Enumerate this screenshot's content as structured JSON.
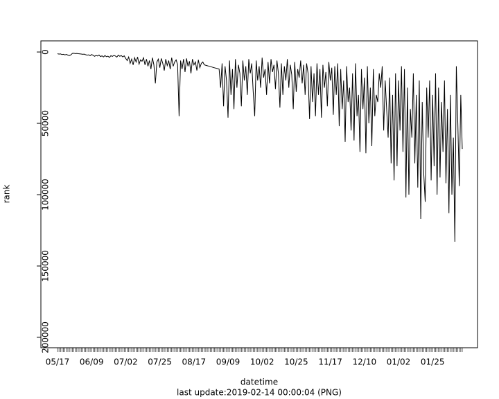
{
  "chart_data": {
    "type": "line",
    "x_label": "datetime",
    "y_label": "rank",
    "caption": "last update:2019-02-14 00:00:04 (PNG)",
    "categories": [
      "05/17",
      null,
      null,
      null,
      null,
      null,
      null,
      null,
      null,
      null,
      null,
      null,
      null,
      null,
      null,
      null,
      null,
      null,
      null,
      null,
      null,
      null,
      null,
      "06/09",
      null,
      null,
      null,
      null,
      null,
      null,
      null,
      null,
      null,
      null,
      null,
      null,
      null,
      null,
      null,
      null,
      null,
      null,
      null,
      null,
      null,
      null,
      "07/02",
      null,
      null,
      null,
      null,
      null,
      null,
      null,
      null,
      null,
      null,
      null,
      null,
      null,
      null,
      null,
      null,
      null,
      null,
      null,
      null,
      null,
      null,
      "07/25",
      null,
      null,
      null,
      null,
      null,
      null,
      null,
      null,
      null,
      null,
      null,
      null,
      null,
      null,
      null,
      null,
      null,
      null,
      null,
      null,
      null,
      null,
      "08/17",
      null,
      null,
      null,
      null,
      null,
      null,
      null,
      null,
      null,
      null,
      null,
      null,
      null,
      null,
      null,
      null,
      null,
      null,
      null,
      null,
      null,
      null,
      "09/09",
      null,
      null,
      null,
      null,
      null,
      null,
      null,
      null,
      null,
      null,
      null,
      null,
      null,
      null,
      null,
      null,
      null,
      null,
      null,
      null,
      null,
      null,
      "10/02",
      null,
      null,
      null,
      null,
      null,
      null,
      null,
      null,
      null,
      null,
      null,
      null,
      null,
      null,
      null,
      null,
      null,
      null,
      null,
      null,
      null,
      null,
      "10/25",
      null,
      null,
      null,
      null,
      null,
      null,
      null,
      null,
      null,
      null,
      null,
      null,
      null,
      null,
      null,
      null,
      null,
      null,
      null,
      null,
      null,
      null,
      "11/17",
      null,
      null,
      null,
      null,
      null,
      null,
      null,
      null,
      null,
      null,
      null,
      null,
      null,
      null,
      null,
      null,
      null,
      null,
      null,
      null,
      null,
      null,
      "12/10",
      null,
      null,
      null,
      null,
      null,
      null,
      null,
      null,
      null,
      null,
      null,
      null,
      null,
      null,
      null,
      null,
      null,
      null,
      null,
      null,
      null,
      null,
      "01/02",
      null,
      null,
      null,
      null,
      null,
      null,
      null,
      null,
      null,
      null,
      null,
      null,
      null,
      null,
      null,
      null,
      null,
      null,
      null,
      null,
      null,
      null,
      "01/25",
      null,
      null,
      null,
      null,
      null,
      null,
      null,
      null,
      null,
      null,
      null,
      null,
      null,
      null,
      null,
      null,
      null,
      null,
      null,
      null
    ],
    "values": [
      1200,
      1500,
      1300,
      1800,
      1600,
      2000,
      1700,
      2200,
      2500,
      2000,
      1000,
      900,
      1100,
      1000,
      1200,
      1300,
      1400,
      1600,
      1500,
      1900,
      2200,
      2000,
      2600,
      1800,
      2300,
      3000,
      2400,
      2800,
      2100,
      3200,
      2700,
      3500,
      2500,
      3300,
      2900,
      3800,
      2600,
      3100,
      2400,
      2800,
      3600,
      2200,
      3000,
      2500,
      3400,
      2700,
      4500,
      6000,
      3500,
      8000,
      5000,
      9000,
      4000,
      7000,
      3500,
      8500,
      5500,
      6500,
      4000,
      9000,
      5000,
      10000,
      6000,
      12000,
      4000,
      9000,
      22000,
      7000,
      5000,
      11000,
      4500,
      8000,
      13000,
      5000,
      9500,
      6000,
      12000,
      4000,
      10000,
      7000,
      5500,
      9000,
      45000,
      6000,
      12000,
      5000,
      14000,
      4500,
      10000,
      6500,
      15000,
      5000,
      9000,
      7000,
      13000,
      5500,
      11000,
      8000,
      7000,
      9000,
      9300,
      9600,
      9900,
      10200,
      10500,
      10800,
      11100,
      11400,
      11700,
      12000,
      25000,
      8000,
      38000,
      10000,
      20000,
      46000,
      6000,
      30000,
      12000,
      40000,
      5000,
      25000,
      9000,
      15000,
      38000,
      6000,
      20000,
      10000,
      30000,
      5000,
      15000,
      8000,
      28000,
      45000,
      6000,
      20000,
      10000,
      25000,
      4000,
      18000,
      12000,
      30000,
      7000,
      22000,
      5000,
      14000,
      9000,
      26000,
      6000,
      15000,
      39000,
      8000,
      30000,
      10000,
      20000,
      5000,
      25000,
      9000,
      16000,
      40000,
      7000,
      28000,
      12000,
      18000,
      6000,
      22000,
      9000,
      30000,
      8000,
      15000,
      47000,
      10000,
      35000,
      15000,
      45000,
      8000,
      30000,
      12000,
      46000,
      9000,
      25000,
      14000,
      38000,
      7000,
      20000,
      11000,
      44000,
      10000,
      30000,
      8000,
      52000,
      12000,
      40000,
      20000,
      63000,
      10000,
      35000,
      25000,
      55000,
      15000,
      62000,
      8000,
      45000,
      30000,
      70000,
      12000,
      40000,
      18000,
      71000,
      10000,
      50000,
      25000,
      66000,
      12000,
      45000,
      30000,
      35000,
      15000,
      25000,
      10000,
      55000,
      20000,
      40000,
      60000,
      18000,
      78000,
      30000,
      90000,
      15000,
      80000,
      20000,
      55000,
      10000,
      70000,
      12000,
      102000,
      25000,
      100000,
      40000,
      60000,
      15000,
      78000,
      30000,
      95000,
      20000,
      117000,
      35000,
      85000,
      105000,
      25000,
      60000,
      20000,
      90000,
      30000,
      80000,
      15000,
      100000,
      25000,
      88000,
      35000,
      70000,
      20000,
      92000,
      40000,
      113000,
      30000,
      100000,
      60000,
      133000,
      10000,
      50000,
      94000,
      30000,
      68000
    ],
    "color": "#000000",
    "ylim": [
      -7800,
      207300
    ],
    "y_inverted": true,
    "yticks": [
      0,
      50000,
      100000,
      150000,
      200000
    ]
  }
}
